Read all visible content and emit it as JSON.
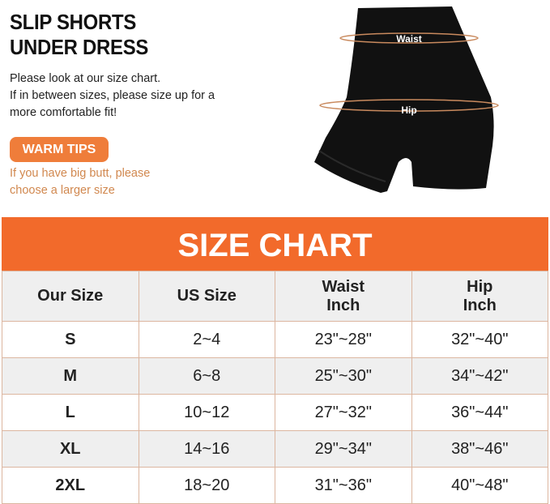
{
  "title_lines": [
    "SLIP SHORTS",
    "UNDER DRESS"
  ],
  "description_lines": [
    "Please look at our size chart.",
    "If in between sizes, please size up for a",
    "more comfortable fit!"
  ],
  "warm_tips_label": "WARM TIPS",
  "warm_tips_lines": [
    "If you have big butt, please",
    "choose a larger size"
  ],
  "product_labels": {
    "waist": "Waist",
    "hip": "Hip"
  },
  "size_chart": {
    "title": "SIZE CHART",
    "headers": [
      [
        "Our Size"
      ],
      [
        "US Size"
      ],
      [
        "Waist",
        "Inch"
      ],
      [
        "Hip",
        "Inch"
      ]
    ],
    "rows": [
      [
        "S",
        "2~4",
        "23\"~28\"",
        "32\"~40\""
      ],
      [
        "M",
        "6~8",
        "25\"~30\"",
        "34\"~42\""
      ],
      [
        "L",
        "10~12",
        "27\"~32\"",
        "36\"~44\""
      ],
      [
        "XL",
        "14~16",
        "29\"~34\"",
        "38\"~46\""
      ],
      [
        "2XL",
        "18~20",
        "31\"~36\"",
        "40\"~48\""
      ]
    ]
  },
  "colors": {
    "accent": "#f26a2b",
    "tips": "#ef7d3a",
    "tips_text": "#d1884f",
    "border": "#dcb6a0"
  }
}
